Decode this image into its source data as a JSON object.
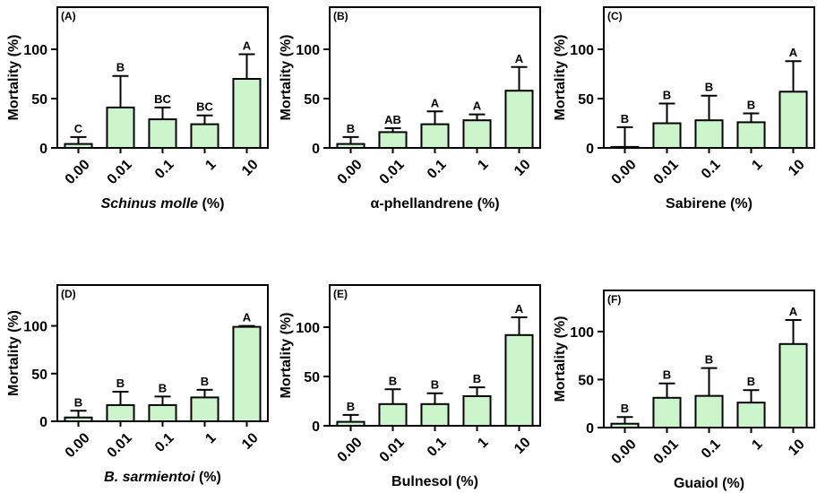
{
  "figure": {
    "bar_fill": "#ccf5cc",
    "bar_stroke": "#000000",
    "panels_count": 6
  },
  "chart_data": [
    {
      "type": "bar",
      "panel_label": "(A)",
      "categories": [
        "0.00",
        "0.01",
        "0.1",
        "1",
        "10"
      ],
      "values": [
        4,
        41,
        29,
        24,
        70
      ],
      "errors": [
        7,
        32,
        12,
        9,
        25
      ],
      "letters": [
        "C",
        "B",
        "BC",
        "BC",
        "A"
      ],
      "ylabel": "Mortality (%)",
      "xlabel_italic": "Schinus molle",
      "xlabel_rest": " (%)",
      "yticks": [
        0,
        50,
        100
      ],
      "ylim": [
        0,
        140
      ]
    },
    {
      "type": "bar",
      "panel_label": "(B)",
      "categories": [
        "0.00",
        "0.01",
        "0.1",
        "1",
        "10"
      ],
      "values": [
        4,
        16,
        24,
        28,
        58
      ],
      "errors": [
        7,
        4,
        13,
        6,
        24
      ],
      "letters": [
        "B",
        "AB",
        "A",
        "A",
        "A"
      ],
      "ylabel": "Mortality (%)",
      "xlabel_italic": "",
      "xlabel_rest": "α-phellandrene (%)",
      "yticks": [
        0,
        50,
        100
      ],
      "ylim": [
        0,
        140
      ]
    },
    {
      "type": "bar",
      "panel_label": "(C)",
      "categories": [
        "0.00",
        "0.01",
        "0.1",
        "1",
        "10"
      ],
      "values": [
        1,
        25,
        28,
        26,
        57
      ],
      "errors": [
        20,
        20,
        25,
        9,
        31
      ],
      "letters": [
        "B",
        "B",
        "B",
        "B",
        "A"
      ],
      "ylabel": "Mortality (%)",
      "xlabel_italic": "",
      "xlabel_rest": "Sabirene (%)",
      "yticks": [
        0,
        50,
        100
      ],
      "ylim": [
        0,
        140
      ]
    },
    {
      "type": "bar",
      "panel_label": "(D)",
      "categories": [
        "0.00",
        "0.01",
        "0.1",
        "1",
        "10"
      ],
      "values": [
        4,
        17,
        17,
        25,
        99
      ],
      "errors": [
        7,
        14,
        9,
        8,
        1
      ],
      "letters": [
        "B",
        "B",
        "B",
        "B",
        "A"
      ],
      "ylabel": "Mortality (%)",
      "xlabel_italic": "B. sarmientoi",
      "xlabel_rest": " (%)",
      "yticks": [
        0,
        50,
        100
      ],
      "ylim": [
        0,
        140
      ]
    },
    {
      "type": "bar",
      "panel_label": "(E)",
      "categories": [
        "0.00",
        "0.01",
        "0.1",
        "1",
        "10"
      ],
      "values": [
        4,
        22,
        22,
        30,
        92
      ],
      "errors": [
        7,
        15,
        11,
        9,
        18
      ],
      "letters": [
        "B",
        "B",
        "B",
        "B",
        "A"
      ],
      "ylabel": "Mortality (%)",
      "xlabel_italic": "",
      "xlabel_rest": "Bulnesol (%)",
      "yticks": [
        0,
        50,
        100
      ],
      "ylim": [
        0,
        140
      ]
    },
    {
      "type": "bar",
      "panel_label": "(F)",
      "categories": [
        "0.00",
        "0.01",
        "0.1",
        "1",
        "10"
      ],
      "values": [
        4,
        31,
        33,
        26,
        87
      ],
      "errors": [
        7,
        15,
        29,
        13,
        25
      ],
      "letters": [
        "B",
        "B",
        "B",
        "B",
        "A"
      ],
      "ylabel": "Mortality (%)",
      "xlabel_italic": "",
      "xlabel_rest": "Guaiol (%)",
      "yticks": [
        0,
        50,
        100
      ],
      "ylim": [
        0,
        140
      ]
    }
  ]
}
